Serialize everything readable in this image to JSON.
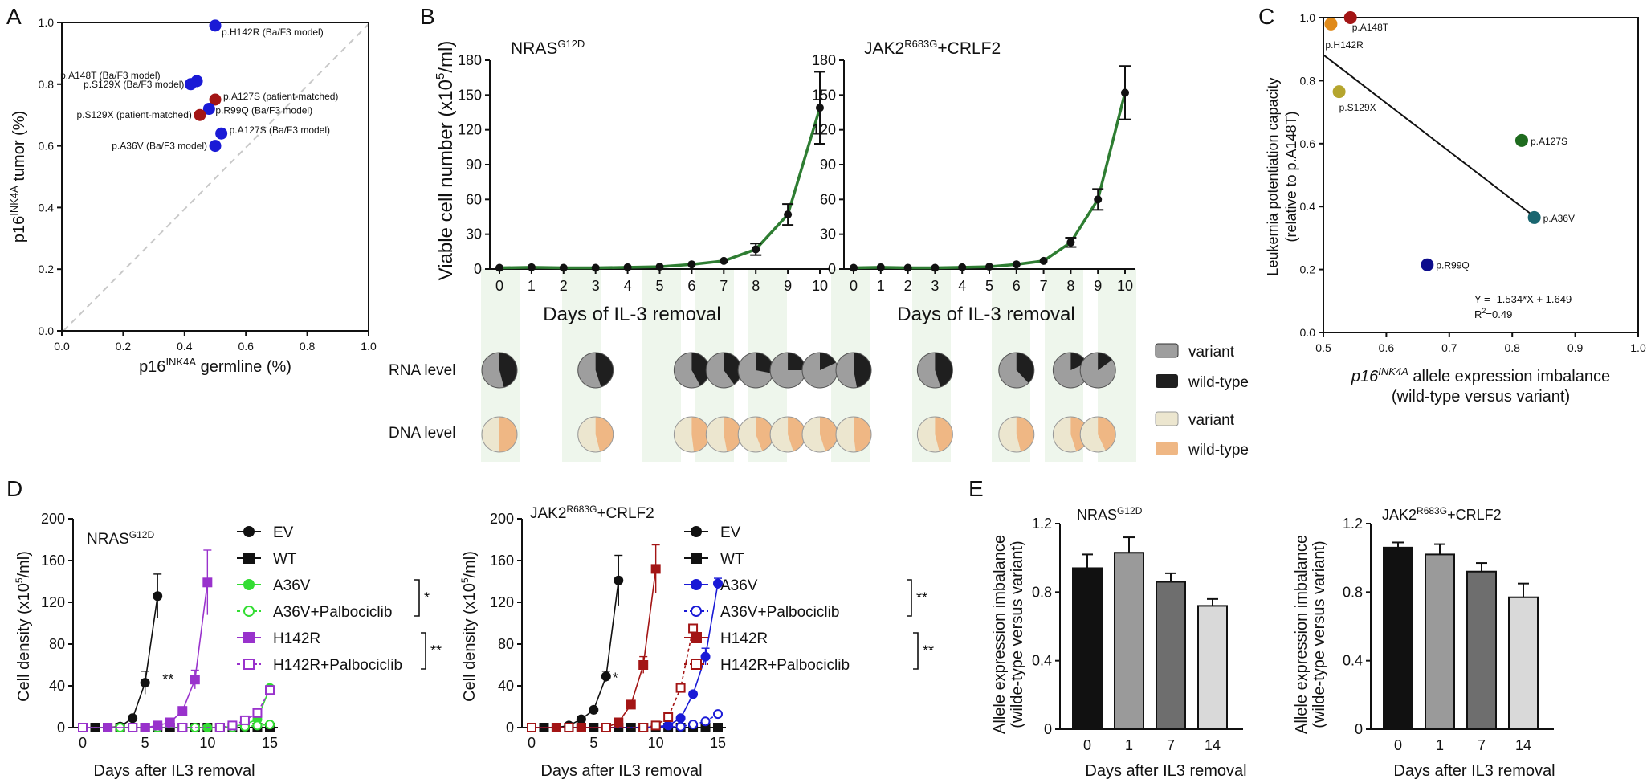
{
  "colors": {
    "axis": "#111111",
    "green_line": "#2e7d32",
    "variant_rna": "#9e9e9e",
    "wildtype_rna": "#1f1f1f",
    "variant_dna": "#ece6cf",
    "wildtype_dna": "#efb784",
    "band": "#eef6ec",
    "blue": "#1a1ad6",
    "red": "#a31515",
    "purple": "#9932cc",
    "lime": "#33dd33",
    "darkblue": "#0d0d8c",
    "olive": "#b5a52e",
    "orange": "#e08a1a",
    "darkgreen": "#1e6b1e",
    "teal": "#1a6670"
  },
  "panels": {
    "a": "A",
    "b": "B",
    "c": "C",
    "d": "D",
    "e": "E"
  },
  "chart_data": [
    {
      "id": "A",
      "type": "scatter",
      "xlabel_main": "p16",
      "xlabel_sup": "INK4A",
      "xlabel_rest": " germline (%)",
      "ylabel_main": "p16",
      "ylabel_sup": "INK4A",
      "ylabel_rest": " tumor (%)",
      "xlim": [
        0,
        1
      ],
      "ylim": [
        0,
        1
      ],
      "xticks": [
        "0.0",
        "0.2",
        "0.4",
        "0.6",
        "0.8",
        "1.0"
      ],
      "yticks": [
        "0.0",
        "0.2",
        "0.4",
        "0.6",
        "0.8",
        "1.0"
      ],
      "points": [
        {
          "x": 0.5,
          "y": 0.99,
          "label": "p.H142R (Ba/F3 model)",
          "color": "blue"
        },
        {
          "x": 0.44,
          "y": 0.81,
          "label": "p.A148T (Ba/F3 model)",
          "color": "blue"
        },
        {
          "x": 0.42,
          "y": 0.8,
          "label": "p.S129X (Ba/F3 model)",
          "color": "blue"
        },
        {
          "x": 0.5,
          "y": 0.75,
          "label": "p.A127S (patient-matched)",
          "color": "red"
        },
        {
          "x": 0.48,
          "y": 0.72,
          "label": "p.R99Q (Ba/F3 model)",
          "color": "blue"
        },
        {
          "x": 0.45,
          "y": 0.7,
          "label": "p.S129X (patient-matched)",
          "color": "red"
        },
        {
          "x": 0.52,
          "y": 0.64,
          "label": "p.A127S (Ba/F3 model)",
          "color": "blue"
        },
        {
          "x": 0.5,
          "y": 0.6,
          "label": "p.A36V (Ba/F3 model)",
          "color": "blue"
        }
      ],
      "diagonal": "dashed y=x"
    },
    {
      "id": "B1",
      "type": "line",
      "title_main": "NRAS",
      "title_sup": "G12D",
      "ylabel": "Viable cell number  (x10",
      "ylabel_sup": "5",
      "ylabel_end": "/ml)",
      "xlabel": "Days of IL-3 removal",
      "x": [
        0,
        1,
        2,
        3,
        4,
        5,
        6,
        7,
        8,
        9,
        10
      ],
      "values": [
        1,
        1.5,
        1,
        1,
        1.5,
        2,
        4,
        7,
        17,
        47,
        139
      ],
      "errors": [
        0,
        0,
        0,
        0,
        0,
        0,
        0,
        0,
        5,
        9,
        31
      ],
      "ylim": [
        0,
        180
      ],
      "yticks": [
        "0",
        "30",
        "60",
        "90",
        "120",
        "150",
        "180"
      ],
      "xticks": [
        "0",
        "1",
        "2",
        "3",
        "4",
        "5",
        "6",
        "7",
        "8",
        "9",
        "10"
      ],
      "pie_days": [
        0,
        3,
        6,
        7,
        8,
        9,
        10
      ],
      "rna_wildtype_fraction": [
        0.46,
        0.45,
        0.42,
        0.4,
        0.28,
        0.25,
        0.18
      ],
      "dna_wildtype_fraction": [
        0.5,
        0.46,
        0.48,
        0.47,
        0.44,
        0.45,
        0.45
      ]
    },
    {
      "id": "B2",
      "type": "line",
      "title_main": "JAK2",
      "title_sup": "R683G",
      "title_rest": "+CRLF2",
      "xlabel": "Days of IL-3 removal",
      "x": [
        0,
        1,
        2,
        3,
        4,
        5,
        6,
        7,
        8,
        9,
        10
      ],
      "values": [
        1,
        1.5,
        1,
        1,
        1.5,
        2,
        4,
        7,
        23,
        60,
        152
      ],
      "errors": [
        0,
        0,
        0,
        0,
        0,
        0,
        0,
        0,
        4,
        9,
        23
      ],
      "ylim": [
        0,
        180
      ],
      "yticks": [
        "0",
        "30",
        "60",
        "90",
        "120",
        "150",
        "180"
      ],
      "xticks": [
        "0",
        "1",
        "2",
        "3",
        "4",
        "5",
        "6",
        "7",
        "8",
        "9",
        "10"
      ],
      "pie_days": [
        0,
        3,
        6,
        8,
        9
      ],
      "rna_wildtype_fraction": [
        0.47,
        0.45,
        0.38,
        0.18,
        0.15
      ],
      "dna_wildtype_fraction": [
        0.48,
        0.46,
        0.46,
        0.45,
        0.43
      ]
    },
    {
      "id": "C",
      "type": "scatter",
      "ylabel_line1": "Leukemia potentiation capacity",
      "ylabel_line2": "(relative to p.A148T)",
      "xlabel_italic": "p16",
      "xlabel_sup": "INK4A",
      "xlabel_rest": " allele expression imbalance",
      "xlabel_line2": "(wild-type versus variant)",
      "xlim": [
        0.5,
        1.0
      ],
      "ylim": [
        0,
        1.0
      ],
      "xticks": [
        "0.5",
        "0.6",
        "0.7",
        "0.8",
        "0.9",
        "1.0"
      ],
      "yticks": [
        "0.0",
        "0.2",
        "0.4",
        "0.6",
        "0.8",
        "1.0"
      ],
      "points": [
        {
          "x": 0.543,
          "y": 1.0,
          "label": "p.A148T",
          "color": "red"
        },
        {
          "x": 0.512,
          "y": 0.98,
          "label": "p.H142R",
          "color": "orange"
        },
        {
          "x": 0.525,
          "y": 0.765,
          "label": "p.S129X",
          "color": "olive"
        },
        {
          "x": 0.815,
          "y": 0.61,
          "label": "p.A127S",
          "color": "darkgreen"
        },
        {
          "x": 0.835,
          "y": 0.365,
          "label": "p.A36V",
          "color": "teal"
        },
        {
          "x": 0.665,
          "y": 0.215,
          "label": "p.R99Q",
          "color": "darkblue"
        }
      ],
      "fit": {
        "slope": -1.534,
        "intercept": 1.649,
        "x_range": [
          0.5,
          0.835
        ]
      },
      "equation": "Y = -1.534*X + 1.649",
      "r2_label": "R",
      "r2_sup": "2",
      "r2_value": "=0.49"
    },
    {
      "id": "D1",
      "type": "line",
      "title_main": "NRAS",
      "title_sup": "G12D",
      "ylabel": "Cell density (x10",
      "ylabel_sup": "5",
      "ylabel_end": "/ml)",
      "xlabel": "Days after IL3 removal",
      "xlim": [
        0,
        15
      ],
      "ylim": [
        0,
        200
      ],
      "xticks": [
        "0",
        "5",
        "10",
        "15"
      ],
      "yticks": [
        "0",
        "40",
        "80",
        "120",
        "160",
        "200"
      ],
      "series": [
        {
          "name": "EV",
          "color": "#111111",
          "marker": "circle",
          "filled": true,
          "dashed": false,
          "x": [
            0,
            1,
            2,
            3,
            4,
            5,
            6
          ],
          "values": [
            0,
            0,
            0,
            1,
            9,
            43,
            126
          ],
          "errors": [
            0,
            0,
            0,
            0,
            0,
            11,
            21
          ]
        },
        {
          "name": "WT",
          "color": "#111111",
          "marker": "square",
          "filled": true,
          "dashed": false,
          "x": [
            0,
            1,
            2,
            3,
            4,
            5,
            6,
            7,
            8,
            9,
            10,
            11,
            12,
            13,
            14,
            15
          ],
          "values": [
            0,
            0,
            0,
            0,
            0,
            0,
            0,
            0,
            0,
            0,
            0,
            0,
            0,
            0,
            0,
            0
          ],
          "errors": []
        },
        {
          "name": "A36V",
          "color": "#33dd33",
          "marker": "circle",
          "filled": true,
          "dashed": false,
          "x": [
            0,
            3,
            6,
            9,
            10,
            11,
            12,
            13,
            14,
            15
          ],
          "values": [
            0,
            0,
            0,
            0,
            0,
            0,
            1,
            3,
            8,
            38
          ],
          "errors": []
        },
        {
          "name": "A36V+Palbociclib",
          "color": "#33dd33",
          "marker": "circle",
          "filled": false,
          "dashed": true,
          "x": [
            0,
            3,
            6,
            9,
            12,
            13,
            14,
            15
          ],
          "values": [
            0,
            0,
            0,
            0,
            0,
            1,
            2,
            3
          ],
          "errors": []
        },
        {
          "name": "H142R",
          "color": "#9932cc",
          "marker": "square",
          "filled": true,
          "dashed": false,
          "x": [
            0,
            2,
            4,
            5,
            6,
            7,
            8,
            9,
            10
          ],
          "values": [
            0,
            0,
            0,
            0,
            2,
            5,
            16,
            46,
            139
          ],
          "errors": [
            0,
            0,
            0,
            0,
            0,
            0,
            0,
            9,
            31
          ]
        },
        {
          "name": "H142R+Palbociclib",
          "color": "#9932cc",
          "marker": "square",
          "filled": false,
          "dashed": true,
          "x": [
            0,
            4,
            8,
            11,
            12,
            13,
            14,
            15
          ],
          "values": [
            0,
            0,
            0,
            0,
            2,
            7,
            14,
            36
          ],
          "errors": []
        }
      ],
      "sig1": "*",
      "sig2": "**",
      "sig3": "**"
    },
    {
      "id": "D2",
      "type": "line",
      "title_main": "JAK2",
      "title_sup": "R683G",
      "title_rest": "+CRLF2",
      "ylabel": "Cell density (x10",
      "ylabel_sup": "5",
      "ylabel_end": "/ml)",
      "xlabel": "Days after IL3 removal",
      "xlim": [
        0,
        15
      ],
      "ylim": [
        0,
        200
      ],
      "xticks": [
        "0",
        "5",
        "10",
        "15"
      ],
      "yticks": [
        "0",
        "40",
        "80",
        "120",
        "160",
        "200"
      ],
      "series": [
        {
          "name": "EV",
          "color": "#111111",
          "marker": "circle",
          "filled": true,
          "dashed": false,
          "x": [
            0,
            1,
            2,
            3,
            4,
            5,
            6,
            7
          ],
          "values": [
            0,
            0,
            0,
            2,
            8,
            17,
            49,
            141
          ],
          "errors": [
            0,
            0,
            0,
            0,
            0,
            0,
            5,
            24
          ]
        },
        {
          "name": "WT",
          "color": "#111111",
          "marker": "square",
          "filled": true,
          "dashed": false,
          "x": [
            0,
            1,
            2,
            3,
            4,
            5,
            6,
            7,
            8,
            9,
            10,
            11,
            12,
            13,
            14,
            15
          ],
          "values": [
            0,
            0,
            0,
            0,
            0,
            0,
            0,
            0,
            0,
            0,
            0,
            0,
            0,
            0,
            0,
            0
          ],
          "errors": []
        },
        {
          "name": "A36V",
          "color": "#1a1ad6",
          "marker": "circle",
          "filled": true,
          "dashed": false,
          "x": [
            0,
            3,
            6,
            9,
            11,
            12,
            13,
            14,
            15
          ],
          "values": [
            0,
            0,
            0,
            0,
            2,
            9,
            32,
            68,
            138
          ],
          "errors": [
            0,
            0,
            0,
            0,
            0,
            0,
            0,
            8,
            5
          ]
        },
        {
          "name": "A36V+Palbociclib",
          "color": "#1a1ad6",
          "marker": "circle",
          "filled": false,
          "dashed": true,
          "x": [
            0,
            3,
            6,
            9,
            12,
            13,
            14,
            15
          ],
          "values": [
            0,
            0,
            0,
            0,
            1,
            3,
            6,
            13
          ],
          "errors": []
        },
        {
          "name": "H142R",
          "color": "#a31515",
          "marker": "square",
          "filled": true,
          "dashed": false,
          "x": [
            0,
            2,
            4,
            6,
            7,
            8,
            9,
            10
          ],
          "values": [
            0,
            0,
            0,
            0,
            5,
            22,
            60,
            152
          ],
          "errors": [
            0,
            0,
            0,
            0,
            0,
            0,
            8,
            23
          ]
        },
        {
          "name": "H142R+Palbociclib",
          "color": "#a31515",
          "marker": "square",
          "filled": false,
          "dashed": true,
          "x": [
            0,
            3,
            6,
            9,
            10,
            11,
            12,
            13
          ],
          "values": [
            0,
            0,
            0,
            0,
            2,
            10,
            38,
            95
          ],
          "errors": []
        }
      ],
      "sig1": "**",
      "sig2": "**"
    },
    {
      "id": "E1",
      "type": "bar",
      "title_main": "NRAS",
      "title_sup": "G12D",
      "ylabel_line1": "Allele expression imbalance",
      "ylabel_line2": "(wilde-type versus variant)",
      "xlabel": "Days after IL3 removal",
      "categories": [
        "0",
        "1",
        "7",
        "14"
      ],
      "values": [
        0.94,
        1.03,
        0.86,
        0.72
      ],
      "errors": [
        0.08,
        0.09,
        0.05,
        0.04
      ],
      "bar_colors": [
        "#111111",
        "#9a9a9a",
        "#6e6e6e",
        "#d9d9d9"
      ],
      "ylim": [
        0,
        1.2
      ],
      "yticks": [
        "0",
        "0.4",
        "0.8",
        "1.2"
      ]
    },
    {
      "id": "E2",
      "type": "bar",
      "title_main": "JAK2",
      "title_sup": "R683G",
      "title_rest": "+CRLF2",
      "ylabel_line1": "Allele expression imbalance",
      "ylabel_line2": "(wilde-type versus variant)",
      "xlabel": "Days after IL3 removal",
      "categories": [
        "0",
        "1",
        "7",
        "14"
      ],
      "values": [
        1.06,
        1.02,
        0.92,
        0.77
      ],
      "errors": [
        0.03,
        0.06,
        0.05,
        0.08
      ],
      "bar_colors": [
        "#111111",
        "#9a9a9a",
        "#6e6e6e",
        "#d9d9d9"
      ],
      "ylim": [
        0,
        1.2
      ],
      "yticks": [
        "0",
        "0.4",
        "0.8",
        "1.2"
      ]
    }
  ],
  "legend_pies": {
    "row_rna": "RNA level",
    "row_dna": "DNA level",
    "variant": "variant",
    "wildtype": "wild-type"
  }
}
